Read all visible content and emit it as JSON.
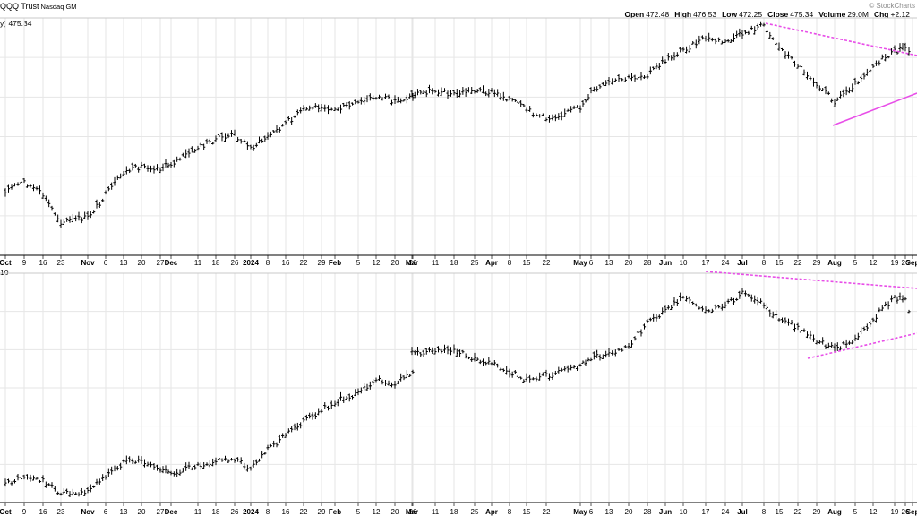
{
  "header": {
    "title": "QQQ Trust",
    "exchange": "Nasdaq GM",
    "watermark": "© StockCharts",
    "ohlc": {
      "open_label": "Open",
      "open": "472.48",
      "high_label": "High",
      "high": "476.53",
      "low_label": "Low",
      "low": "472.25",
      "close_label": "Close",
      "close": "475.34",
      "volume_label": "Volume",
      "volume": "29.0M",
      "chg_label": "Chg",
      "chg": "+2.12"
    },
    "upper_label": "y) 475.34",
    "lower_label": "10"
  },
  "chart_data": [
    {
      "type": "ohlc",
      "panel": "upper",
      "x_tick_labels": [
        "Oct",
        "9",
        "16",
        "23",
        "Nov",
        "6",
        "13",
        "20",
        "27",
        "Dec",
        "11",
        "18",
        "26",
        "2024",
        "8",
        "16",
        "22",
        "29",
        "Feb",
        "5",
        "12",
        "20",
        "26",
        "Mar",
        "11",
        "18",
        "25",
        "Apr",
        "8",
        "15",
        "22",
        "May",
        "6",
        "13",
        "20",
        "28",
        "Jun",
        "10",
        "17",
        "24",
        "Jul",
        "8",
        "15",
        "22",
        "29",
        "Aug",
        "5",
        "12",
        "19",
        "26",
        "Sep"
      ],
      "bold_tick_labels": [
        "Oct",
        "Nov",
        "Dec",
        "2024",
        "Feb",
        "Mar",
        "Apr",
        "May",
        "Jun",
        "Jul",
        "Aug",
        "Sep"
      ],
      "grid": true,
      "last_close": 475.34,
      "price_path": [
        {
          "label": "Oct",
          "value": 26
        },
        {
          "label": "9",
          "value": 30
        },
        {
          "label": "16",
          "value": 24
        },
        {
          "label": "23",
          "value": 12
        },
        {
          "label": "Nov",
          "value": 14
        },
        {
          "label": "6",
          "value": 24
        },
        {
          "label": "13",
          "value": 34
        },
        {
          "label": "20",
          "value": 37
        },
        {
          "label": "27",
          "value": 36
        },
        {
          "label": "Dec",
          "value": 38
        },
        {
          "label": "11",
          "value": 45
        },
        {
          "label": "18",
          "value": 49
        },
        {
          "label": "26",
          "value": 51
        },
        {
          "label": "2024",
          "value": 45
        },
        {
          "label": "8",
          "value": 50
        },
        {
          "label": "16",
          "value": 56
        },
        {
          "label": "22",
          "value": 62
        },
        {
          "label": "29",
          "value": 64
        },
        {
          "label": "Feb",
          "value": 62
        },
        {
          "label": "5",
          "value": 65
        },
        {
          "label": "12",
          "value": 68
        },
        {
          "label": "20",
          "value": 66
        },
        {
          "label": "26",
          "value": 68
        },
        {
          "label": "Mar",
          "value": 69
        },
        {
          "label": "11",
          "value": 71
        },
        {
          "label": "18",
          "value": 69
        },
        {
          "label": "25",
          "value": 71
        },
        {
          "label": "Apr",
          "value": 70
        },
        {
          "label": "8",
          "value": 67
        },
        {
          "label": "15",
          "value": 62
        },
        {
          "label": "22",
          "value": 58
        },
        {
          "label": "May",
          "value": 63
        },
        {
          "label": "6",
          "value": 70
        },
        {
          "label": "13",
          "value": 74
        },
        {
          "label": "20",
          "value": 76
        },
        {
          "label": "28",
          "value": 78
        },
        {
          "label": "Jun",
          "value": 84
        },
        {
          "label": "10",
          "value": 89
        },
        {
          "label": "17",
          "value": 94
        },
        {
          "label": "24",
          "value": 92
        },
        {
          "label": "Jul",
          "value": 96
        },
        {
          "label": "8",
          "value": 100
        },
        {
          "label": "15",
          "value": 90
        },
        {
          "label": "22",
          "value": 82
        },
        {
          "label": "29",
          "value": 74
        },
        {
          "label": "Aug",
          "value": 66
        },
        {
          "label": "5",
          "value": 74
        },
        {
          "label": "12",
          "value": 82
        },
        {
          "label": "19",
          "value": 88
        },
        {
          "label": "26",
          "value": 90
        },
        {
          "label": "Sep",
          "value": 86
        }
      ],
      "annotations": [
        {
          "type": "trendline",
          "color": "#e84ee8",
          "style": "dashed",
          "from": "Jul",
          "to": "Sep",
          "direction": "down"
        },
        {
          "type": "trendline",
          "color": "#e84ee8",
          "style": "solid",
          "from": "Aug",
          "to": "Sep",
          "direction": "up"
        }
      ]
    },
    {
      "type": "ohlc",
      "panel": "lower",
      "x_tick_labels": [
        "Oct",
        "9",
        "16",
        "23",
        "Nov",
        "6",
        "13",
        "20",
        "27",
        "Dec",
        "11",
        "18",
        "26",
        "2024",
        "8",
        "16",
        "22",
        "29",
        "Feb",
        "5",
        "12",
        "20",
        "26",
        "Mar",
        "11",
        "18",
        "25",
        "Apr",
        "8",
        "15",
        "22",
        "May",
        "6",
        "13",
        "20",
        "28",
        "Jun",
        "10",
        "17",
        "24",
        "Jul",
        "8",
        "15",
        "22",
        "29",
        "Aug",
        "5",
        "12",
        "19",
        "26",
        "Sep"
      ],
      "bold_tick_labels": [
        "Oct",
        "Nov",
        "Dec",
        "2024",
        "Feb",
        "Mar",
        "Apr",
        "May",
        "Jun",
        "Jul",
        "Aug",
        "Sep"
      ],
      "grid": true,
      "price_path": [
        {
          "label": "Oct",
          "value": 6
        },
        {
          "label": "9",
          "value": 10
        },
        {
          "label": "16",
          "value": 8
        },
        {
          "label": "23",
          "value": 2
        },
        {
          "label": "Nov",
          "value": 3
        },
        {
          "label": "6",
          "value": 10
        },
        {
          "label": "13",
          "value": 16
        },
        {
          "label": "20",
          "value": 17
        },
        {
          "label": "27",
          "value": 13
        },
        {
          "label": "Dec",
          "value": 11
        },
        {
          "label": "11",
          "value": 15
        },
        {
          "label": "18",
          "value": 17
        },
        {
          "label": "26",
          "value": 18
        },
        {
          "label": "2024",
          "value": 13
        },
        {
          "label": "8",
          "value": 22
        },
        {
          "label": "16",
          "value": 29
        },
        {
          "label": "22",
          "value": 35
        },
        {
          "label": "29",
          "value": 40
        },
        {
          "label": "Feb",
          "value": 44
        },
        {
          "label": "5",
          "value": 48
        },
        {
          "label": "12",
          "value": 54
        },
        {
          "label": "20",
          "value": 52
        },
        {
          "label": "26",
          "value": 58
        },
        {
          "label": "Mar",
          "value": 66
        },
        {
          "label": "11",
          "value": 68
        },
        {
          "label": "18",
          "value": 68
        },
        {
          "label": "25",
          "value": 64
        },
        {
          "label": "Apr",
          "value": 62
        },
        {
          "label": "8",
          "value": 58
        },
        {
          "label": "15",
          "value": 54
        },
        {
          "label": "22",
          "value": 56
        },
        {
          "label": "May",
          "value": 60
        },
        {
          "label": "6",
          "value": 64
        },
        {
          "label": "13",
          "value": 66
        },
        {
          "label": "20",
          "value": 70
        },
        {
          "label": "28",
          "value": 80
        },
        {
          "label": "Jun",
          "value": 86
        },
        {
          "label": "10",
          "value": 92
        },
        {
          "label": "17",
          "value": 86
        },
        {
          "label": "24",
          "value": 88
        },
        {
          "label": "Jul",
          "value": 94
        },
        {
          "label": "8",
          "value": 88
        },
        {
          "label": "15",
          "value": 82
        },
        {
          "label": "22",
          "value": 78
        },
        {
          "label": "29",
          "value": 72
        },
        {
          "label": "Aug",
          "value": 68
        },
        {
          "label": "5",
          "value": 72
        },
        {
          "label": "12",
          "value": 82
        },
        {
          "label": "19",
          "value": 92
        },
        {
          "label": "26",
          "value": 90
        },
        {
          "label": "Sep",
          "value": 82
        }
      ],
      "annotations": [
        {
          "type": "trendline",
          "color": "#e84ee8",
          "style": "dashed",
          "from": "Jun",
          "to": "Sep",
          "direction": "down"
        },
        {
          "type": "trendline",
          "color": "#e84ee8",
          "style": "dashed",
          "from": "Aug",
          "to": "Sep",
          "direction": "up"
        }
      ]
    }
  ]
}
